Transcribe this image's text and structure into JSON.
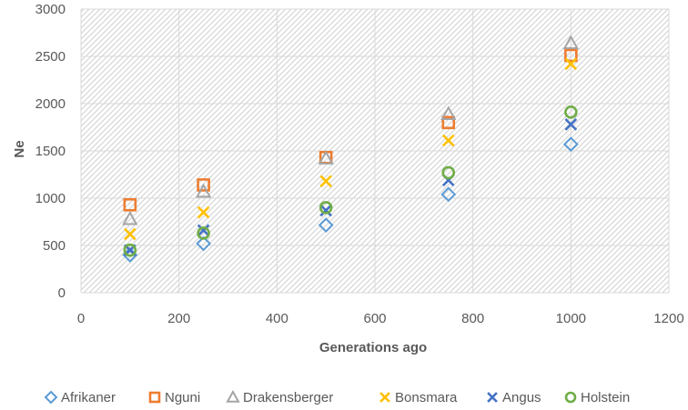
{
  "chart_data": {
    "type": "scatter",
    "title": "",
    "xlabel": "Generations ago",
    "ylabel": "Ne",
    "xlim": [
      0,
      1200
    ],
    "ylim": [
      0,
      3000
    ],
    "xticks": [
      0,
      200,
      400,
      600,
      800,
      1000,
      1200
    ],
    "yticks": [
      0,
      500,
      1000,
      1500,
      2000,
      2500,
      3000
    ],
    "grid": true,
    "legend_position": "bottom",
    "x": [
      100,
      250,
      500,
      750,
      1000
    ],
    "series": [
      {
        "name": "Afrikaner",
        "marker": "diamond",
        "color": "#5B9BD5",
        "values": [
          400,
          520,
          715,
          1040,
          1570
        ]
      },
      {
        "name": "Nguni",
        "marker": "square",
        "color": "#ED7D31",
        "values": [
          930,
          1140,
          1430,
          1800,
          2510
        ]
      },
      {
        "name": "Drakensberger",
        "marker": "triangle",
        "color": "#A5A5A5",
        "values": [
          780,
          1070,
          1420,
          1890,
          2640
        ]
      },
      {
        "name": "Bonsmara",
        "marker": "x",
        "color": "#FFC000",
        "values": [
          620,
          850,
          1180,
          1610,
          2420
        ]
      },
      {
        "name": "Angus",
        "marker": "x",
        "color": "#4472C4",
        "values": [
          450,
          660,
          870,
          1190,
          1780
        ]
      },
      {
        "name": "Holstein",
        "marker": "circle",
        "color": "#70AD47",
        "values": [
          450,
          630,
          900,
          1270,
          1910
        ]
      }
    ]
  }
}
